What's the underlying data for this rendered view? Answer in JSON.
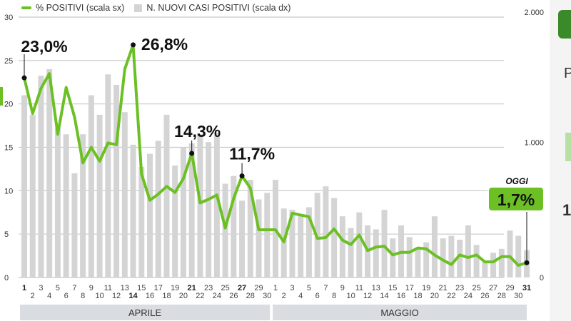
{
  "legend": {
    "line_label": "% POSITIVI (scala sx)",
    "bar_label": "N. NUOVI CASI POSITIVI (scala dx)"
  },
  "colors": {
    "line": "#6cc024",
    "bar": "#d4d4d4",
    "grid": "#c8c8c8",
    "callout_bg": "#6cc024",
    "month_band": "#d9dde2"
  },
  "side_panel": {
    "p_text": "P",
    "one_text": "1"
  },
  "chart_data": {
    "type": "bar+line",
    "x_ticks": [
      "1",
      "2",
      "3",
      "4",
      "5",
      "6",
      "7",
      "8",
      "9",
      "10",
      "11",
      "12",
      "13",
      "14",
      "15",
      "16",
      "17",
      "18",
      "19",
      "20",
      "21",
      "22",
      "23",
      "24",
      "25",
      "26",
      "27",
      "28",
      "29",
      "30",
      "1",
      "2",
      "3",
      "4",
      "5",
      "6",
      "7",
      "8",
      "9",
      "10",
      "11",
      "12",
      "13",
      "14",
      "15",
      "16",
      "17",
      "18",
      "19",
      "20",
      "21",
      "22",
      "23",
      "24",
      "25",
      "26",
      "27",
      "28",
      "29",
      "30",
      "31"
    ],
    "bold_ticks": [
      "1",
      "14",
      "21",
      "27",
      "31"
    ],
    "months": [
      "APRILE",
      "MAGGIO"
    ],
    "y_left": {
      "min": 0,
      "max": 30,
      "ticks": [
        0,
        5,
        10,
        15,
        20,
        25,
        30
      ],
      "unit": "%"
    },
    "y_right": {
      "min": 0,
      "max": 2000,
      "ticks": [
        0,
        1000,
        2000
      ],
      "tick_labels": [
        "0",
        "1.000",
        "2.000"
      ]
    },
    "series": [
      {
        "name": "% POSITIVI (scala sx)",
        "kind": "line",
        "axis": "left",
        "values": [
          23.0,
          18.9,
          21.8,
          23.5,
          16.5,
          21.9,
          18.5,
          13.2,
          15.0,
          13.4,
          15.5,
          15.3,
          24.0,
          26.8,
          11.9,
          8.9,
          9.6,
          10.5,
          9.8,
          11.4,
          14.3,
          8.6,
          9.0,
          9.5,
          5.7,
          9.1,
          11.7,
          10.3,
          5.5,
          5.5,
          5.5,
          4.1,
          7.4,
          7.2,
          7.0,
          4.5,
          4.6,
          5.6,
          4.3,
          3.8,
          4.9,
          3.1,
          3.5,
          3.6,
          2.6,
          2.9,
          2.9,
          3.4,
          3.3,
          2.6,
          2.0,
          1.5,
          2.6,
          2.3,
          2.6,
          1.8,
          1.8,
          2.4,
          2.4,
          1.4,
          1.7
        ]
      },
      {
        "name": "N. NUOVI CASI POSITIVI (scala dx)",
        "kind": "bar",
        "axis": "right",
        "values": [
          1400,
          1250,
          1550,
          1600,
          1150,
          1100,
          800,
          1100,
          1400,
          1250,
          1560,
          1480,
          1270,
          1020,
          850,
          950,
          1050,
          1250,
          860,
          1000,
          1030,
          1100,
          1040,
          1110,
          720,
          780,
          590,
          750,
          600,
          650,
          750,
          530,
          520,
          480,
          540,
          650,
          700,
          610,
          470,
          380,
          500,
          400,
          370,
          520,
          300,
          400,
          310,
          230,
          270,
          470,
          300,
          320,
          290,
          400,
          250,
          120,
          190,
          220,
          360,
          320,
          210
        ],
        "ylim": [
          0,
          2000
        ]
      }
    ],
    "annotations": [
      {
        "label": "23,0%",
        "tick_index": 0,
        "value": 23.0
      },
      {
        "label": "26,8%",
        "tick_index": 13,
        "value": 26.8
      },
      {
        "label": "14,3%",
        "tick_index": 20,
        "value": 14.3
      },
      {
        "label": "11,7%",
        "tick_index": 26,
        "value": 11.7
      },
      {
        "label": "1,7%",
        "tick_index": 60,
        "value": 1.7,
        "callout": true,
        "caption": "OGGI"
      }
    ],
    "grid": true,
    "legend_position": "top-left"
  }
}
